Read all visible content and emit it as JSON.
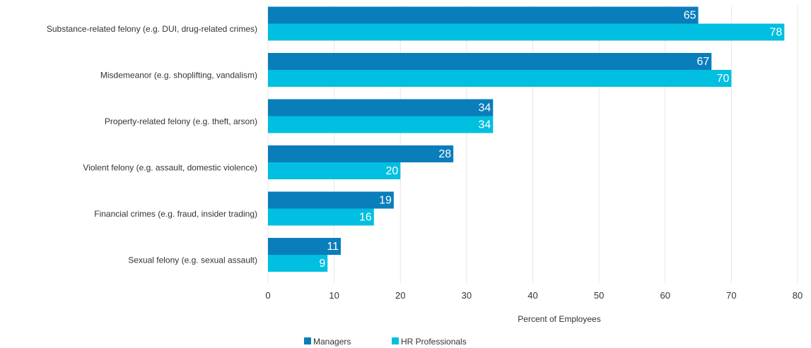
{
  "colors": {
    "managers": "#0A7DBB",
    "hr_professionals": "#00BFE0",
    "grid": "#E6E6E6",
    "text": "#333333"
  },
  "chart_data": {
    "type": "bar",
    "orientation": "horizontal",
    "categories": [
      "Substance-related felony (e.g. DUI, drug-related  crimes)",
      "Misdemeanor (e.g. shoplifting, vandalism)",
      "Property-related felony (e.g. theft, arson)",
      "Violent felony (e.g. assault, domestic violence)",
      "Financial crimes (e.g. fraud, insider trading)",
      "Sexual felony (e.g. sexual assault)"
    ],
    "series": [
      {
        "name": "Managers",
        "values": [
          65,
          67,
          34,
          28,
          19,
          11
        ]
      },
      {
        "name": "HR Professionals",
        "values": [
          78,
          70,
          34,
          20,
          16,
          9
        ]
      }
    ],
    "xlabel": "Percent of Employees",
    "xlim": [
      0,
      80
    ],
    "xticks": [
      "0",
      "10",
      "20",
      "30",
      "40",
      "50",
      "60",
      "70",
      "80"
    ],
    "grid": true,
    "legend": "bottom-center"
  }
}
